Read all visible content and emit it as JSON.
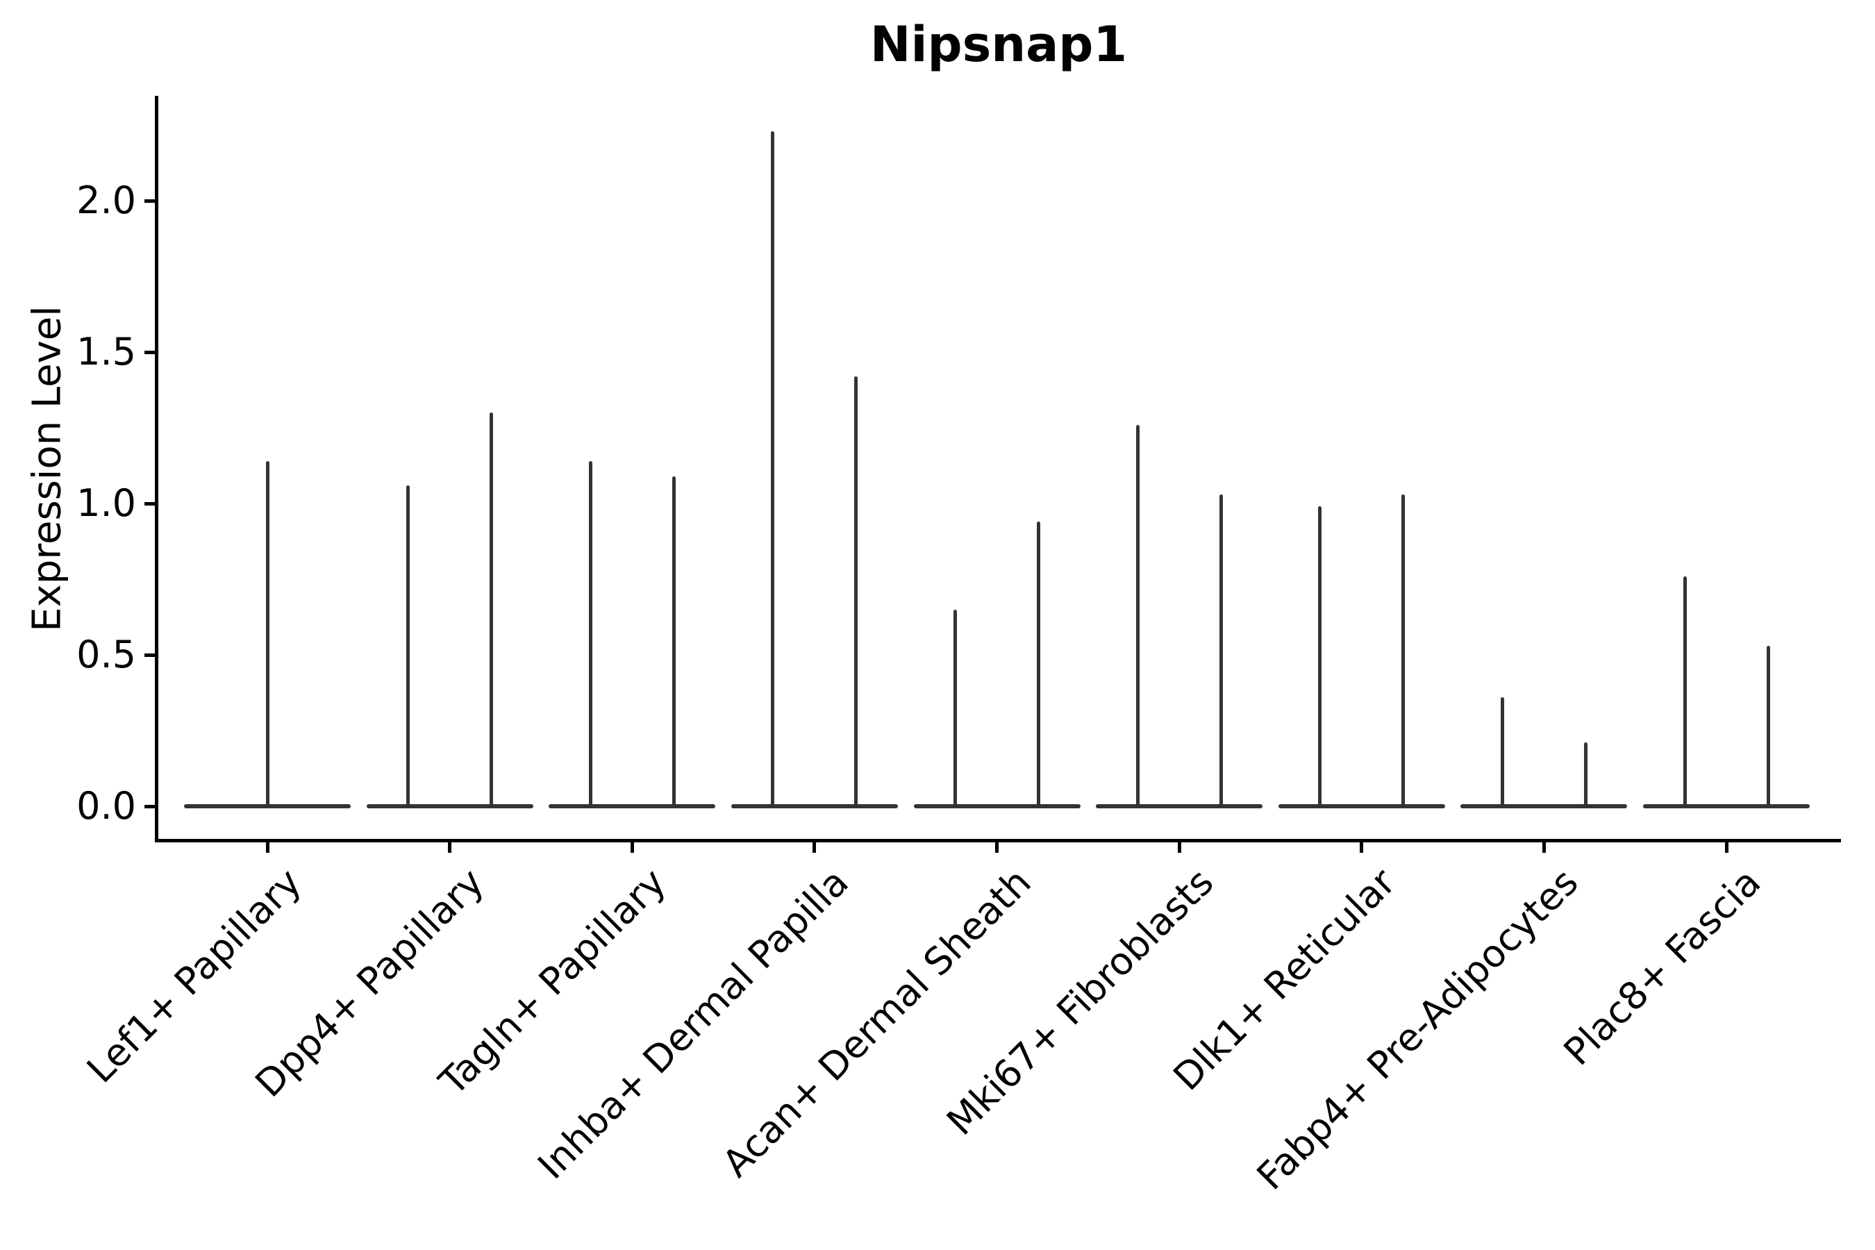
{
  "title": "Nipsnap1",
  "axes": {
    "ylabel": "Expression Level",
    "ytick_labels": [
      "0.0",
      "0.5",
      "1.0",
      "1.5",
      "2.0"
    ]
  },
  "chart_data": {
    "type": "violin",
    "title": "Nipsnap1",
    "xlabel": "",
    "ylabel": "Expression Level",
    "grid": false,
    "legend": false,
    "ylim": [
      -0.11,
      2.34
    ],
    "yticks": [
      0.0,
      0.5,
      1.0,
      1.5,
      2.0
    ],
    "baseline_value": 0.0,
    "categories": [
      "Lef1+ Papillary",
      "Dpp4+ Papillary",
      "Tagln+ Papillary",
      "Inhba+ Dermal Papilla",
      "Acan+ Dermal Sheath",
      "Mki67+ Fibroblasts",
      "Dlk1+ Reticular",
      "Fabp4+ Pre-Adipocytes",
      "Plac8+ Fascia"
    ],
    "violins": [
      {
        "category": "Lef1+ Papillary",
        "spike_maxima": [
          1.14
        ]
      },
      {
        "category": "Dpp4+ Papillary",
        "spike_maxima": [
          1.06,
          1.3
        ]
      },
      {
        "category": "Tagln+ Papillary",
        "spike_maxima": [
          1.14,
          1.09
        ]
      },
      {
        "category": "Inhba+ Dermal Papilla",
        "spike_maxima": [
          2.23,
          1.42
        ]
      },
      {
        "category": "Acan+ Dermal Sheath",
        "spike_maxima": [
          0.65,
          0.94
        ]
      },
      {
        "category": "Mki67+ Fibroblasts",
        "spike_maxima": [
          1.26,
          1.03
        ]
      },
      {
        "category": "Dlk1+ Reticular",
        "spike_maxima": [
          0.99,
          1.03
        ]
      },
      {
        "category": "Fabp4+ Pre-Adipocytes",
        "spike_maxima": [
          0.36,
          0.21
        ]
      },
      {
        "category": "Plac8+ Fascia",
        "spike_maxima": [
          0.76,
          0.53
        ]
      }
    ],
    "colors": {
      "violin_line": "#333333",
      "spine": "#000000",
      "text": "#000000",
      "background": "#ffffff"
    }
  }
}
